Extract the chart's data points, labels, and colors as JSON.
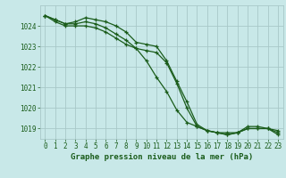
{
  "title": "Graphe pression niveau de la mer (hPa)",
  "background_color": "#c8e8e8",
  "plot_bg_color": "#c8e8e8",
  "grid_color": "#a8c8c8",
  "line_color": "#1a5c1a",
  "text_color": "#1a5c1a",
  "xlim": [
    -0.5,
    23.5
  ],
  "ylim": [
    1018.5,
    1025.0
  ],
  "yticks": [
    1019,
    1020,
    1021,
    1022,
    1023,
    1024
  ],
  "xticks": [
    0,
    1,
    2,
    3,
    4,
    5,
    6,
    7,
    8,
    9,
    10,
    11,
    12,
    13,
    14,
    15,
    16,
    17,
    18,
    19,
    20,
    21,
    22,
    23
  ],
  "xtick_labels": [
    "0",
    "1",
    "2",
    "3",
    "4",
    "5",
    "6",
    "7",
    "8",
    "9",
    "10",
    "11",
    "12",
    "13",
    "14",
    "15",
    "16",
    "17",
    "18",
    "19",
    "20",
    "21",
    "22",
    "23"
  ],
  "series": [
    [
      1024.5,
      1024.3,
      1024.1,
      1024.1,
      1024.2,
      1024.1,
      1023.9,
      1023.6,
      1023.3,
      1022.9,
      1022.3,
      1021.5,
      1020.8,
      1019.9,
      1019.3,
      1019.1,
      1018.9,
      1018.8,
      1018.8,
      1018.8,
      1019.0,
      1019.0,
      1019.0,
      1018.9
    ],
    [
      1024.5,
      1024.3,
      1024.1,
      1024.2,
      1024.4,
      1024.3,
      1024.2,
      1024.0,
      1023.7,
      1023.2,
      1023.1,
      1023.0,
      1022.3,
      1021.3,
      1020.3,
      1019.2,
      1018.9,
      1018.8,
      1018.7,
      1018.8,
      1019.0,
      1019.0,
      1019.0,
      1018.8
    ],
    [
      1024.5,
      1024.2,
      1024.0,
      1024.0,
      1024.0,
      1023.9,
      1023.7,
      1023.4,
      1023.1,
      1022.9,
      1022.8,
      1022.7,
      1022.2,
      1021.2,
      1020.0,
      1019.1,
      1018.9,
      1018.8,
      1018.7,
      1018.8,
      1019.1,
      1019.1,
      1019.0,
      1018.7
    ]
  ],
  "title_fontsize": 6.5,
  "tick_fontsize": 5.5
}
